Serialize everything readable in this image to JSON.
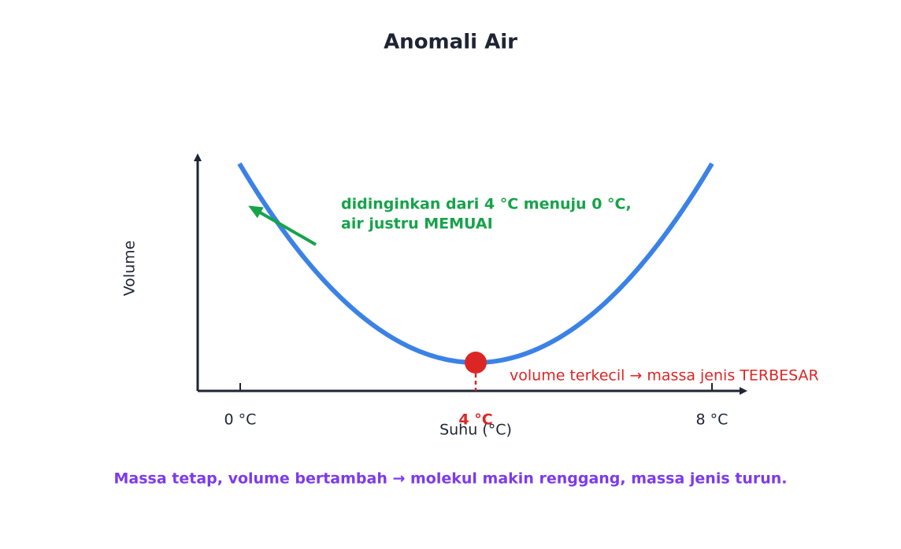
{
  "title": "Anomali Air",
  "axes": {
    "x_label": "Suhu (°C)",
    "y_label": "Volume",
    "x_ticks": [
      "0 °C",
      "4 °C",
      "8 °C"
    ]
  },
  "annotations": {
    "cooling": [
      "didinginkan dari 4 °C menuju 0 °C,",
      "air justru MEMUAI"
    ],
    "minimum": "volume terkecil → massa jenis TERBESAR"
  },
  "caption": "Massa tetap, volume bertambah → molekul makin renggang, massa jenis turun."
}
